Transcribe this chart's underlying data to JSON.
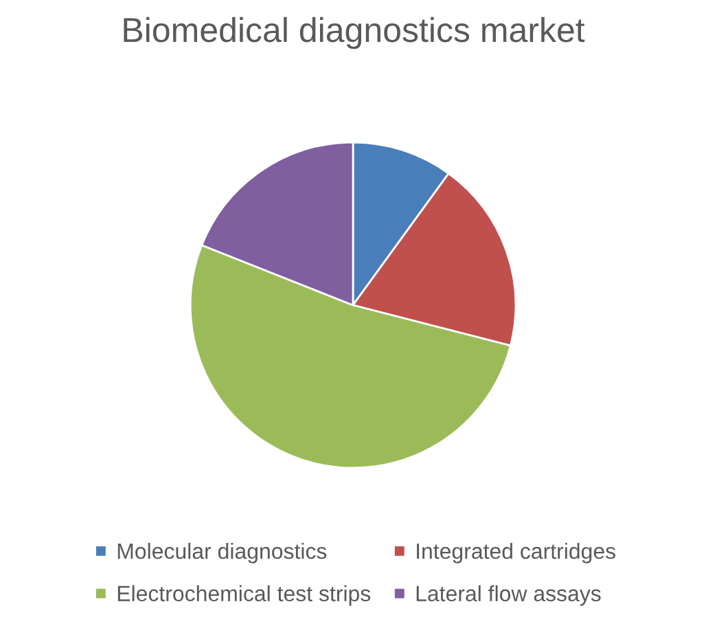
{
  "chart_data": {
    "type": "pie",
    "title": "Biomedical diagnostics market",
    "categories": [
      "Molecular diagnostics",
      "Integrated cartridges",
      "Electrochemical test strips",
      "Lateral flow assays"
    ],
    "values": [
      10,
      19,
      52,
      19
    ],
    "colors": [
      "#4a7ebb",
      "#c0504d",
      "#9bbb59",
      "#7f5f9f"
    ],
    "legend": "bottom"
  }
}
